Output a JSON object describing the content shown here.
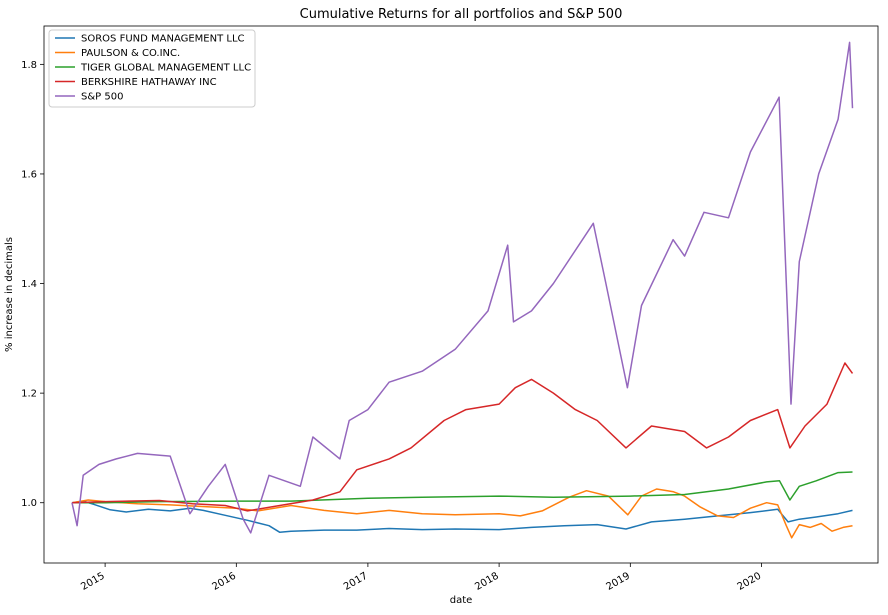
{
  "chart_data": {
    "type": "line",
    "title": "Cumulative Returns for all portfolios and S&P 500",
    "xlabel": "date",
    "ylabel": "% increase in decimals",
    "xlim": [
      "2014-07-15",
      "2020-11-20"
    ],
    "ylim": [
      0.89,
      1.87
    ],
    "x_ticks": [
      "2015",
      "2016",
      "2017",
      "2018",
      "2019",
      "2020"
    ],
    "y_ticks": [
      "1.0",
      "1.2",
      "1.4",
      "1.6",
      "1.8"
    ],
    "grid": false,
    "legend_position": "top-left",
    "series": [
      {
        "name": "SOROS FUND MANAGEMENT LLC",
        "color": "#1f77b4",
        "points": [
          [
            "2014-10-01",
            1.0
          ],
          [
            "2014-11-01",
            1.003
          ],
          [
            "2014-12-01",
            0.997
          ],
          [
            "2015-01-15",
            0.987
          ],
          [
            "2015-03-01",
            0.983
          ],
          [
            "2015-05-01",
            0.988
          ],
          [
            "2015-07-01",
            0.985
          ],
          [
            "2015-08-25",
            0.99
          ],
          [
            "2015-10-01",
            0.986
          ],
          [
            "2015-12-01",
            0.977
          ],
          [
            "2016-02-01",
            0.968
          ],
          [
            "2016-04-01",
            0.958
          ],
          [
            "2016-05-01",
            0.946
          ],
          [
            "2016-06-01",
            0.948
          ],
          [
            "2016-09-01",
            0.95
          ],
          [
            "2016-12-01",
            0.95
          ],
          [
            "2017-03-01",
            0.953
          ],
          [
            "2017-06-01",
            0.951
          ],
          [
            "2017-09-01",
            0.952
          ],
          [
            "2018-01-01",
            0.951
          ],
          [
            "2018-04-01",
            0.955
          ],
          [
            "2018-07-01",
            0.958
          ],
          [
            "2018-10-01",
            0.96
          ],
          [
            "2018-12-20",
            0.952
          ],
          [
            "2019-03-01",
            0.965
          ],
          [
            "2019-06-01",
            0.97
          ],
          [
            "2019-09-01",
            0.976
          ],
          [
            "2019-12-01",
            0.982
          ],
          [
            "2020-02-15",
            0.988
          ],
          [
            "2020-03-15",
            0.965
          ],
          [
            "2020-04-15",
            0.97
          ],
          [
            "2020-06-01",
            0.974
          ],
          [
            "2020-08-01",
            0.98
          ],
          [
            "2020-09-10",
            0.986
          ]
        ]
      },
      {
        "name": "PAULSON & CO.INC.",
        "color": "#ff7f0e",
        "points": [
          [
            "2014-10-01",
            1.0
          ],
          [
            "2014-11-15",
            1.005
          ],
          [
            "2015-01-01",
            1.002
          ],
          [
            "2015-04-01",
            0.998
          ],
          [
            "2015-07-01",
            0.996
          ],
          [
            "2015-09-01",
            0.994
          ],
          [
            "2016-01-01",
            0.99
          ],
          [
            "2016-03-01",
            0.985
          ],
          [
            "2016-06-01",
            0.995
          ],
          [
            "2016-09-01",
            0.986
          ],
          [
            "2016-12-01",
            0.98
          ],
          [
            "2017-03-01",
            0.986
          ],
          [
            "2017-06-01",
            0.98
          ],
          [
            "2017-09-01",
            0.978
          ],
          [
            "2018-01-01",
            0.98
          ],
          [
            "2018-03-01",
            0.976
          ],
          [
            "2018-05-01",
            0.985
          ],
          [
            "2018-07-15",
            1.01
          ],
          [
            "2018-09-01",
            1.022
          ],
          [
            "2018-11-01",
            1.012
          ],
          [
            "2018-12-25",
            0.978
          ],
          [
            "2019-02-01",
            1.012
          ],
          [
            "2019-03-15",
            1.025
          ],
          [
            "2019-05-01",
            1.02
          ],
          [
            "2019-06-01",
            1.012
          ],
          [
            "2019-07-15",
            0.992
          ],
          [
            "2019-09-01",
            0.976
          ],
          [
            "2019-10-15",
            0.973
          ],
          [
            "2019-12-01",
            0.99
          ],
          [
            "2020-01-15",
            1.0
          ],
          [
            "2020-02-15",
            0.996
          ],
          [
            "2020-03-10",
            0.958
          ],
          [
            "2020-03-25",
            0.936
          ],
          [
            "2020-04-15",
            0.96
          ],
          [
            "2020-05-15",
            0.955
          ],
          [
            "2020-06-15",
            0.962
          ],
          [
            "2020-07-15",
            0.948
          ],
          [
            "2020-08-15",
            0.955
          ],
          [
            "2020-09-10",
            0.958
          ]
        ]
      },
      {
        "name": "TIGER GLOBAL MANAGEMENT LLC",
        "color": "#2ca02c",
        "points": [
          [
            "2014-10-01",
            1.0
          ],
          [
            "2015-01-01",
            1.0
          ],
          [
            "2015-06-01",
            1.002
          ],
          [
            "2016-01-01",
            1.003
          ],
          [
            "2016-06-01",
            1.003
          ],
          [
            "2017-01-01",
            1.008
          ],
          [
            "2017-06-01",
            1.01
          ],
          [
            "2018-01-01",
            1.012
          ],
          [
            "2018-06-01",
            1.01
          ],
          [
            "2019-01-01",
            1.012
          ],
          [
            "2019-06-01",
            1.015
          ],
          [
            "2019-10-01",
            1.025
          ],
          [
            "2020-01-15",
            1.038
          ],
          [
            "2020-02-20",
            1.04
          ],
          [
            "2020-03-20",
            1.005
          ],
          [
            "2020-04-15",
            1.03
          ],
          [
            "2020-06-01",
            1.04
          ],
          [
            "2020-08-01",
            1.055
          ],
          [
            "2020-09-10",
            1.056
          ]
        ]
      },
      {
        "name": "BERKSHIRE HATHAWAY INC",
        "color": "#d62728",
        "points": [
          [
            "2014-10-01",
            1.0
          ],
          [
            "2015-01-01",
            1.002
          ],
          [
            "2015-06-01",
            1.004
          ],
          [
            "2015-09-01",
            0.998
          ],
          [
            "2015-12-01",
            0.995
          ],
          [
            "2016-02-01",
            0.985
          ],
          [
            "2016-05-01",
            0.995
          ],
          [
            "2016-08-01",
            1.005
          ],
          [
            "2016-10-15",
            1.02
          ],
          [
            "2016-12-01",
            1.06
          ],
          [
            "2017-03-01",
            1.08
          ],
          [
            "2017-05-01",
            1.1
          ],
          [
            "2017-08-01",
            1.15
          ],
          [
            "2017-10-01",
            1.17
          ],
          [
            "2018-01-01",
            1.18
          ],
          [
            "2018-02-15",
            1.21
          ],
          [
            "2018-04-01",
            1.225
          ],
          [
            "2018-06-01",
            1.2
          ],
          [
            "2018-08-01",
            1.17
          ],
          [
            "2018-10-01",
            1.15
          ],
          [
            "2018-12-20",
            1.1
          ],
          [
            "2019-03-01",
            1.14
          ],
          [
            "2019-06-01",
            1.13
          ],
          [
            "2019-08-01",
            1.1
          ],
          [
            "2019-10-01",
            1.12
          ],
          [
            "2019-12-01",
            1.15
          ],
          [
            "2020-02-15",
            1.17
          ],
          [
            "2020-03-20",
            1.1
          ],
          [
            "2020-05-01",
            1.14
          ],
          [
            "2020-07-01",
            1.18
          ],
          [
            "2020-08-20",
            1.255
          ],
          [
            "2020-09-10",
            1.236
          ]
        ]
      },
      {
        "name": "S&P 500",
        "color": "#9467bd",
        "points": [
          [
            "2014-10-01",
            1.0
          ],
          [
            "2014-10-15",
            0.958
          ],
          [
            "2014-11-01",
            1.05
          ],
          [
            "2014-12-15",
            1.07
          ],
          [
            "2015-02-01",
            1.08
          ],
          [
            "2015-04-01",
            1.09
          ],
          [
            "2015-07-01",
            1.085
          ],
          [
            "2015-08-25",
            0.98
          ],
          [
            "2015-10-15",
            1.03
          ],
          [
            "2015-12-01",
            1.07
          ],
          [
            "2016-01-20",
            0.97
          ],
          [
            "2016-02-10",
            0.945
          ],
          [
            "2016-04-01",
            1.05
          ],
          [
            "2016-06-27",
            1.03
          ],
          [
            "2016-08-01",
            1.12
          ],
          [
            "2016-10-15",
            1.08
          ],
          [
            "2016-11-10",
            1.15
          ],
          [
            "2017-01-01",
            1.17
          ],
          [
            "2017-03-01",
            1.22
          ],
          [
            "2017-06-01",
            1.24
          ],
          [
            "2017-09-01",
            1.28
          ],
          [
            "2017-12-01",
            1.35
          ],
          [
            "2018-01-25",
            1.47
          ],
          [
            "2018-02-10",
            1.33
          ],
          [
            "2018-04-01",
            1.35
          ],
          [
            "2018-06-01",
            1.4
          ],
          [
            "2018-09-20",
            1.51
          ],
          [
            "2018-10-25",
            1.4
          ],
          [
            "2018-12-24",
            1.21
          ],
          [
            "2019-02-01",
            1.36
          ],
          [
            "2019-04-30",
            1.48
          ],
          [
            "2019-06-01",
            1.45
          ],
          [
            "2019-07-25",
            1.53
          ],
          [
            "2019-10-01",
            1.52
          ],
          [
            "2019-12-01",
            1.64
          ],
          [
            "2020-02-19",
            1.74
          ],
          [
            "2020-03-23",
            1.18
          ],
          [
            "2020-04-15",
            1.44
          ],
          [
            "2020-06-08",
            1.6
          ],
          [
            "2020-08-01",
            1.7
          ],
          [
            "2020-09-02",
            1.84
          ],
          [
            "2020-09-10",
            1.72
          ]
        ]
      }
    ]
  }
}
